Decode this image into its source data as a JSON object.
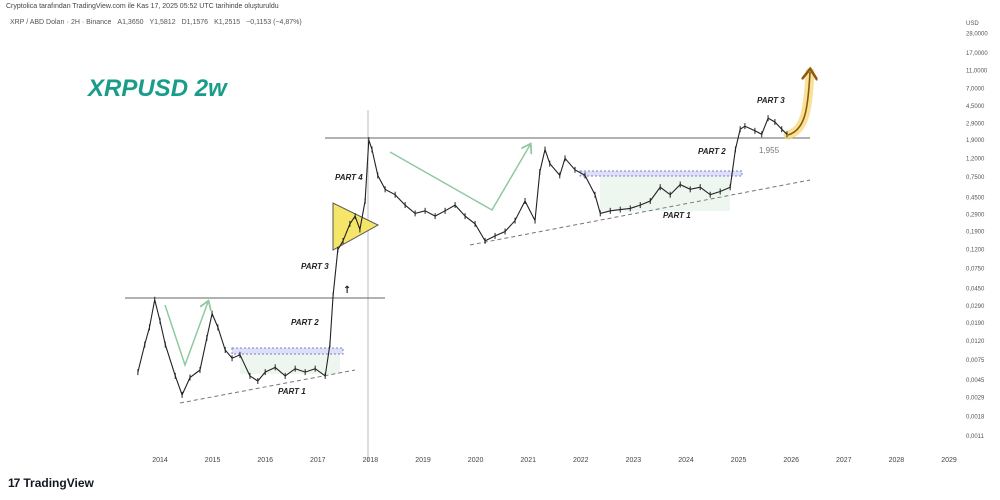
{
  "header": {
    "credit": "Cryptolica tarafından TradingView.com ile Kas 17, 2025 05:52 UTC tarihinde oluşturuldu",
    "symbol": "XRP / ABD Doları · 2H · Binance",
    "open": "A1,3650",
    "high": "Y1,5812",
    "low": "D1,1576",
    "close": "K1,2515",
    "change": "−0,1153 (−4,87%)"
  },
  "logo": {
    "mark": "17",
    "text": "TradingView"
  },
  "colors": {
    "title": "#1a9c8c",
    "line": "#222222",
    "arrows": "#8fc9a0",
    "channel": "#7b7fd0",
    "pennant": "#f5e66a",
    "curve_arrow": "#e8b93a",
    "level": "#555555"
  },
  "chart_data": {
    "type": "line",
    "title": "XRPUSD 2w",
    "y_scale": "log",
    "y_unit": "USD",
    "ylim": [
      0.0008,
      30
    ],
    "xlim": [
      2013.3,
      2029.2
    ],
    "grid": false,
    "y_ticks": [
      "28,0000",
      "17,0000",
      "11,0000",
      "7,0000",
      "4,5000",
      "2,9000",
      "1,9000",
      "1,2000",
      "0,7500",
      "0,4500",
      "0,2900",
      "0,1900",
      "0,1200",
      "0,0750",
      "0,0450",
      "0,0290",
      "0,0190",
      "0,0120",
      "0,0075",
      "0,0045",
      "0,0029",
      "0,0018",
      "0,0011"
    ],
    "y_tick_values": [
      28,
      17,
      11,
      7,
      4.5,
      2.9,
      1.9,
      1.2,
      0.75,
      0.45,
      0.29,
      0.19,
      0.12,
      0.075,
      0.045,
      0.029,
      0.019,
      0.012,
      0.0075,
      0.0045,
      0.0029,
      0.0018,
      0.0011
    ],
    "x_ticks": [
      "2014",
      "2015",
      "2016",
      "2017",
      "2018",
      "2019",
      "2020",
      "2021",
      "2022",
      "2023",
      "2024",
      "2025",
      "2026",
      "2027",
      "2028",
      "2029"
    ],
    "x": [
      2013.58,
      2013.71,
      2013.8,
      2013.9,
      2014.0,
      2014.1,
      2014.29,
      2014.42,
      2014.57,
      2014.76,
      2014.89,
      2014.99,
      2015.1,
      2015.24,
      2015.37,
      2015.52,
      2015.71,
      2015.86,
      2016.0,
      2016.19,
      2016.38,
      2016.57,
      2016.76,
      2016.95,
      2017.14,
      2017.23,
      2017.29,
      2017.38,
      2017.48,
      2017.61,
      2017.71,
      2017.8,
      2017.9,
      2017.97,
      2018.03,
      2018.14,
      2018.28,
      2018.47,
      2018.66,
      2018.85,
      2019.04,
      2019.23,
      2019.42,
      2019.61,
      2019.8,
      2019.99,
      2020.18,
      2020.37,
      2020.56,
      2020.75,
      2020.94,
      2021.13,
      2021.22,
      2021.32,
      2021.41,
      2021.6,
      2021.7,
      2021.89,
      2022.08,
      2022.27,
      2022.37,
      2022.56,
      2022.75,
      2022.94,
      2023.13,
      2023.32,
      2023.51,
      2023.7,
      2023.89,
      2024.08,
      2024.27,
      2024.46,
      2024.65,
      2024.84,
      2024.94,
      2025.03,
      2025.12,
      2025.31,
      2025.44,
      2025.56,
      2025.69,
      2025.82,
      2025.92
    ],
    "y": [
      0.0055,
      0.011,
      0.017,
      0.034,
      0.02,
      0.011,
      0.005,
      0.0031,
      0.0048,
      0.0058,
      0.013,
      0.024,
      0.017,
      0.0096,
      0.0078,
      0.0085,
      0.005,
      0.0044,
      0.0055,
      0.0062,
      0.005,
      0.006,
      0.0055,
      0.006,
      0.005,
      0.011,
      0.038,
      0.12,
      0.15,
      0.23,
      0.28,
      0.2,
      0.41,
      1.9,
      1.5,
      0.78,
      0.55,
      0.48,
      0.37,
      0.3,
      0.32,
      0.28,
      0.32,
      0.37,
      0.28,
      0.23,
      0.15,
      0.17,
      0.19,
      0.25,
      0.41,
      0.25,
      0.85,
      1.5,
      1.05,
      0.78,
      1.2,
      0.9,
      0.78,
      0.48,
      0.3,
      0.32,
      0.33,
      0.34,
      0.37,
      0.41,
      0.58,
      0.48,
      0.62,
      0.55,
      0.58,
      0.48,
      0.52,
      0.58,
      1.5,
      2.5,
      2.7,
      2.4,
      2.2,
      3.3,
      3.0,
      2.5,
      2.2
    ],
    "annotations": {
      "part1_left": "PART 1",
      "part2_left": "PART 2",
      "part3_left": "PART 3",
      "part4_left": "PART 4",
      "part1_right": "PART 1",
      "part2_right": "PART 2",
      "part3_right": "PART 3",
      "level_label": "1,955",
      "up_arrow": "↑"
    }
  }
}
